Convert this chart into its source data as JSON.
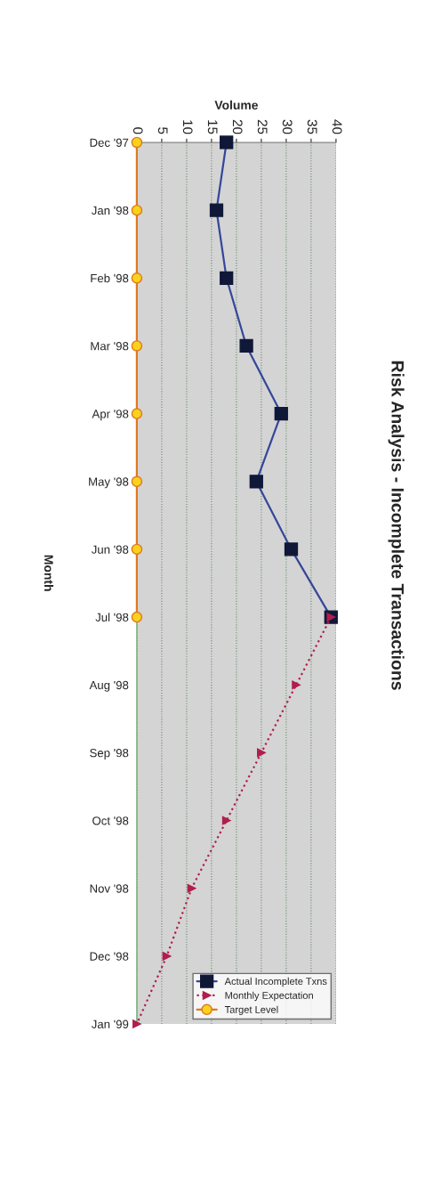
{
  "chart_data": {
    "type": "line",
    "orientation": "horizontal",
    "title": "Risk Analysis - Incomplete Transactions",
    "xlabel": "Volume",
    "ylabel": "Month",
    "categories": [
      "Dec '97",
      "Jan '98",
      "Feb '98",
      "Mar '98",
      "Apr '98",
      "May '98",
      "Jun '98",
      "Jul '98",
      "Aug '98",
      "Sep '98",
      "Oct '98",
      "Nov '98",
      "Dec '98",
      "Jan '99"
    ],
    "series": [
      {
        "name": "Actual Incomplete Txns",
        "color": "#34479a",
        "marker": "square",
        "line_style": "solid",
        "values": [
          18,
          16,
          18,
          22,
          29,
          24,
          31,
          39,
          null,
          null,
          null,
          null,
          null,
          null
        ]
      },
      {
        "name": "Monthly Expectation",
        "color": "#b01e4e",
        "marker": "triangle",
        "line_style": "dotted",
        "values": [
          null,
          null,
          null,
          null,
          null,
          null,
          null,
          39,
          32,
          25,
          18,
          11,
          6,
          0
        ]
      },
      {
        "name": "Target Level",
        "color": "#e0781e",
        "marker": "circle",
        "line_style": "solid",
        "values": [
          0,
          0,
          0,
          0,
          0,
          0,
          0,
          0,
          null,
          null,
          null,
          null,
          null,
          null
        ]
      }
    ],
    "xlim": [
      0,
      40
    ],
    "xticks": [
      0,
      5,
      10,
      15,
      20,
      25,
      30,
      35,
      40
    ],
    "grid": "x",
    "legend": "bottom right"
  }
}
